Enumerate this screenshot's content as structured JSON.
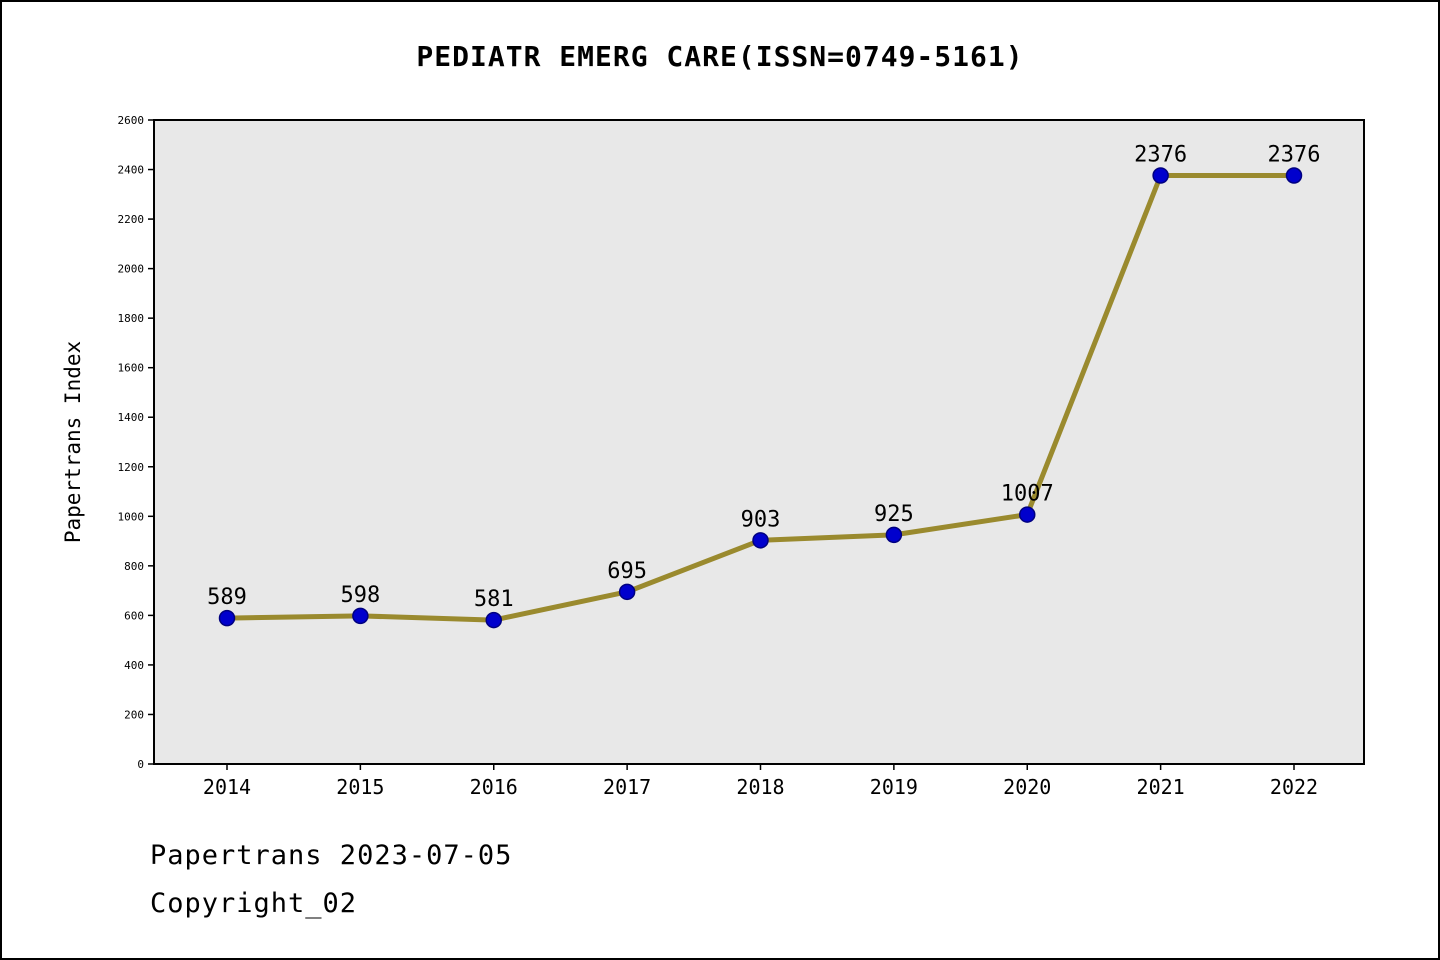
{
  "header": {
    "title": "PEDIATR EMERG CARE(ISSN=0749-5161)"
  },
  "footer": {
    "line1": "Papertrans 2023-07-05",
    "line2": "Copyright_02"
  },
  "chart_data": {
    "type": "line",
    "title": "PEDIATR EMERG CARE(ISSN=0749-5161)",
    "xlabel": "",
    "ylabel": "Papertrans Index",
    "categories": [
      "2014",
      "2015",
      "2016",
      "2017",
      "2018",
      "2019",
      "2020",
      "2021",
      "2022"
    ],
    "series": [
      {
        "name": "Papertrans Index",
        "values": [
          589,
          598,
          581,
          695,
          903,
          925,
          1007,
          2376,
          2376
        ]
      }
    ],
    "point_labels": [
      "589",
      "598",
      "581",
      "695",
      "903",
      "925",
      "1007",
      "2376",
      "2376"
    ],
    "ylim": [
      0,
      2600
    ],
    "ytick_step": 200,
    "yticks": [
      0,
      200,
      400,
      600,
      800,
      1000,
      1200,
      1400,
      1600,
      1800,
      2000,
      2200,
      2400,
      2600
    ],
    "grid": false,
    "legend_position": "none",
    "colors": {
      "line": "#9a8a2e",
      "marker_fill": "#0000cd",
      "marker_edge": "#000080",
      "plot_background": "#e8e8e8",
      "axis": "#000000",
      "label_text": "#000000"
    }
  }
}
